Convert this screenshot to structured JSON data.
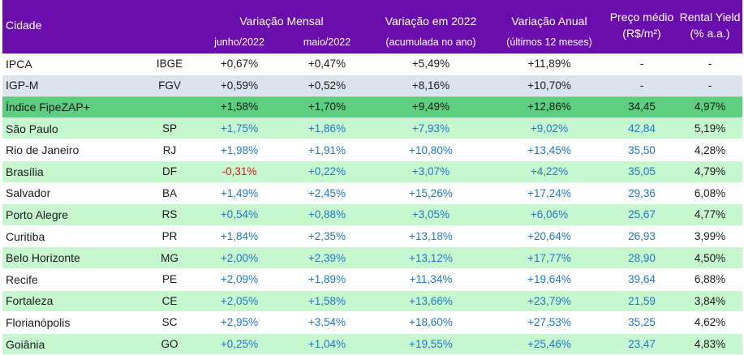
{
  "header": {
    "cidade": "Cidade",
    "variacao_mensal": "Variação Mensal",
    "junho": "junho/2022",
    "maio": "maio/2022",
    "variacao_2022": "Variação em 2022",
    "variacao_2022_sub": "(acumulada no ano)",
    "variacao_anual": "Variação Anual",
    "variacao_anual_sub": "(últimos 12 meses)",
    "preco_medio": "Preço médio",
    "preco_medio_sub": "(R$/m²)",
    "rental_yield": "Rental Yield",
    "rental_yield_sub": "(% a.a.)"
  },
  "colors": {
    "header_bg": "#6a0dad",
    "row_highlight": "#5ece80",
    "row_light": "#c7f7cf",
    "row_gray": "#dde3ec",
    "value_blue": "#1f78c8",
    "value_red": "#e8121e"
  },
  "rows": [
    {
      "name": "IPCA",
      "uf": "IBGE",
      "jun": "+0,67%",
      "mai": "+0,47%",
      "ano": "+5,49%",
      "anual": "+11,89%",
      "preco": "-",
      "yield": "-",
      "style": "white",
      "blue": false
    },
    {
      "name": "IGP-M",
      "uf": "FGV",
      "jun": "+0,59%",
      "mai": "+0,52%",
      "ano": "+8,16%",
      "anual": "+10,70%",
      "preco": "-",
      "yield": "-",
      "style": "gray",
      "blue": false
    },
    {
      "name": "Índice FipeZAP+",
      "uf": "",
      "jun": "+1,58%",
      "mai": "+1,70%",
      "ano": "+9,49%",
      "anual": "+12,86%",
      "preco": "34,45",
      "yield": "4,97%",
      "style": "dark",
      "blue": false
    },
    {
      "name": "São Paulo",
      "uf": "SP",
      "jun": "+1,75%",
      "mai": "+1,86%",
      "ano": "+7,93%",
      "anual": "+9,02%",
      "preco": "42,84",
      "yield": "5,19%",
      "style": "light",
      "blue": true
    },
    {
      "name": "Rio de Janeiro",
      "uf": "RJ",
      "jun": "+1,98%",
      "mai": "+1,91%",
      "ano": "+10,80%",
      "anual": "+13,45%",
      "preco": "35,50",
      "yield": "4,28%",
      "style": "white",
      "blue": true
    },
    {
      "name": "Brasília",
      "uf": "DF",
      "jun": "-0,31%",
      "mai": "+0,22%",
      "ano": "+3,07%",
      "anual": "+4,22%",
      "preco": "35,05",
      "yield": "4,79%",
      "style": "light",
      "blue": true,
      "jun_red": true
    },
    {
      "name": "Salvador",
      "uf": "BA",
      "jun": "+1,49%",
      "mai": "+2,45%",
      "ano": "+15,26%",
      "anual": "+17,24%",
      "preco": "29,36",
      "yield": "6,08%",
      "style": "white",
      "blue": true
    },
    {
      "name": "Porto Alegre",
      "uf": "RS",
      "jun": "+0,54%",
      "mai": "+0,88%",
      "ano": "+3,05%",
      "anual": "+6,06%",
      "preco": "25,67",
      "yield": "4,77%",
      "style": "light",
      "blue": true
    },
    {
      "name": "Curitiba",
      "uf": "PR",
      "jun": "+1,84%",
      "mai": "+2,35%",
      "ano": "+13,18%",
      "anual": "+20,64%",
      "preco": "26,93",
      "yield": "3,99%",
      "style": "white",
      "blue": true
    },
    {
      "name": "Belo Horizonte",
      "uf": "MG",
      "jun": "+2,00%",
      "mai": "+2,39%",
      "ano": "+13,12%",
      "anual": "+17,77%",
      "preco": "28,90",
      "yield": "4,50%",
      "style": "light",
      "blue": true
    },
    {
      "name": "Recife",
      "uf": "PE",
      "jun": "+2,09%",
      "mai": "+1,89%",
      "ano": "+11,34%",
      "anual": "+19,64%",
      "preco": "39,64",
      "yield": "6,88%",
      "style": "white",
      "blue": true
    },
    {
      "name": "Fortaleza",
      "uf": "CE",
      "jun": "+2,05%",
      "mai": "+1,58%",
      "ano": "+13,66%",
      "anual": "+23,79%",
      "preco": "21,59",
      "yield": "3,84%",
      "style": "light",
      "blue": true
    },
    {
      "name": "Florianópolis",
      "uf": "SC",
      "jun": "+2,95%",
      "mai": "+3,54%",
      "ano": "+18,60%",
      "anual": "+27,53%",
      "preco": "35,25",
      "yield": "4,62%",
      "style": "white",
      "blue": true
    },
    {
      "name": "Goiânia",
      "uf": "GO",
      "jun": "+0,25%",
      "mai": "+1,04%",
      "ano": "+19,55%",
      "anual": "+25,46%",
      "preco": "23,47",
      "yield": "4,83%",
      "style": "light",
      "blue": true
    }
  ]
}
